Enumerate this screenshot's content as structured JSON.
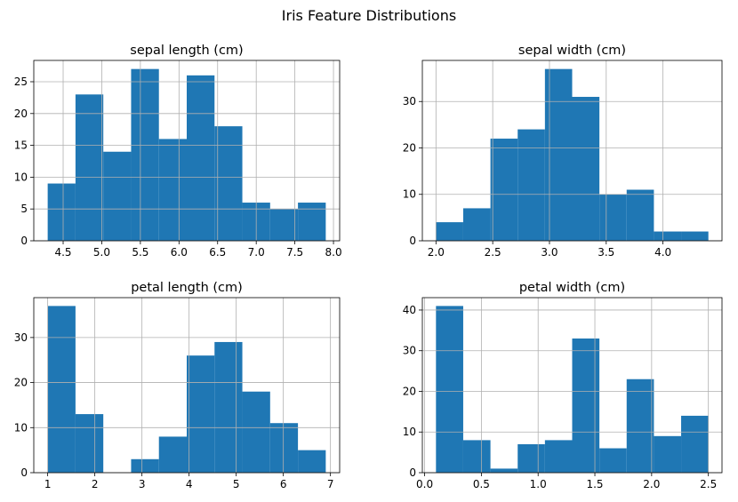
{
  "suptitle": "Iris Feature Distributions",
  "colors": {
    "bar": "#1f77b4",
    "grid": "#b0b0b0",
    "axis": "#000000"
  },
  "chart_data": [
    {
      "type": "bar",
      "title": "sepal length (cm)",
      "grid": true,
      "xlim": [
        4.12,
        8.08
      ],
      "ylim": [
        0,
        28.35
      ],
      "xticks": [
        4.5,
        5.0,
        5.5,
        6.0,
        6.5,
        7.0,
        7.5,
        8.0
      ],
      "xtick_labels": [
        "4.5",
        "5.0",
        "5.5",
        "6.0",
        "6.5",
        "7.0",
        "7.5",
        "8.0"
      ],
      "yticks": [
        0,
        5,
        10,
        15,
        20,
        25
      ],
      "ytick_labels": [
        "0",
        "5",
        "10",
        "15",
        "20",
        "25"
      ],
      "bin_edges": [
        4.3,
        4.66,
        5.02,
        5.38,
        5.74,
        6.1,
        6.46,
        6.82,
        7.18,
        7.54,
        7.9
      ],
      "counts": [
        9,
        23,
        14,
        27,
        16,
        26,
        18,
        6,
        5,
        6
      ]
    },
    {
      "type": "bar",
      "title": "sepal width (cm)",
      "grid": true,
      "xlim": [
        1.88,
        4.52
      ],
      "ylim": [
        0,
        38.85
      ],
      "xticks": [
        2.0,
        2.5,
        3.0,
        3.5,
        4.0
      ],
      "xtick_labels": [
        "2.0",
        "2.5",
        "3.0",
        "3.5",
        "4.0"
      ],
      "yticks": [
        0,
        10,
        20,
        30
      ],
      "ytick_labels": [
        "0",
        "10",
        "20",
        "30"
      ],
      "bin_edges": [
        2.0,
        2.24,
        2.48,
        2.72,
        2.96,
        3.2,
        3.44,
        3.68,
        3.92,
        4.16,
        4.4
      ],
      "counts": [
        4,
        7,
        22,
        24,
        37,
        31,
        10,
        11,
        2,
        2
      ]
    },
    {
      "type": "bar",
      "title": "petal length (cm)",
      "grid": true,
      "xlim": [
        0.705,
        7.195
      ],
      "ylim": [
        0,
        38.85
      ],
      "xticks": [
        1,
        2,
        3,
        4,
        5,
        6,
        7
      ],
      "xtick_labels": [
        "1",
        "2",
        "3",
        "4",
        "5",
        "6",
        "7"
      ],
      "yticks": [
        0,
        10,
        20,
        30
      ],
      "ytick_labels": [
        "0",
        "10",
        "20",
        "30"
      ],
      "bin_edges": [
        1.0,
        1.59,
        2.18,
        2.77,
        3.36,
        3.95,
        4.54,
        5.13,
        5.72,
        6.31,
        6.9
      ],
      "counts": [
        37,
        13,
        0,
        3,
        8,
        26,
        29,
        18,
        11,
        5
      ]
    },
    {
      "type": "bar",
      "title": "petal width (cm)",
      "grid": true,
      "xlim": [
        -0.02,
        2.62
      ],
      "ylim": [
        0,
        43.05
      ],
      "xticks": [
        0.0,
        0.5,
        1.0,
        1.5,
        2.0,
        2.5
      ],
      "xtick_labels": [
        "0.0",
        "0.5",
        "1.0",
        "1.5",
        "2.0",
        "2.5"
      ],
      "yticks": [
        0,
        10,
        20,
        30,
        40
      ],
      "ytick_labels": [
        "0",
        "10",
        "20",
        "30",
        "40"
      ],
      "bin_edges": [
        0.1,
        0.34,
        0.58,
        0.82,
        1.06,
        1.3,
        1.54,
        1.78,
        2.02,
        2.26,
        2.5
      ],
      "counts": [
        41,
        8,
        1,
        7,
        8,
        33,
        6,
        23,
        9,
        14
      ]
    }
  ]
}
